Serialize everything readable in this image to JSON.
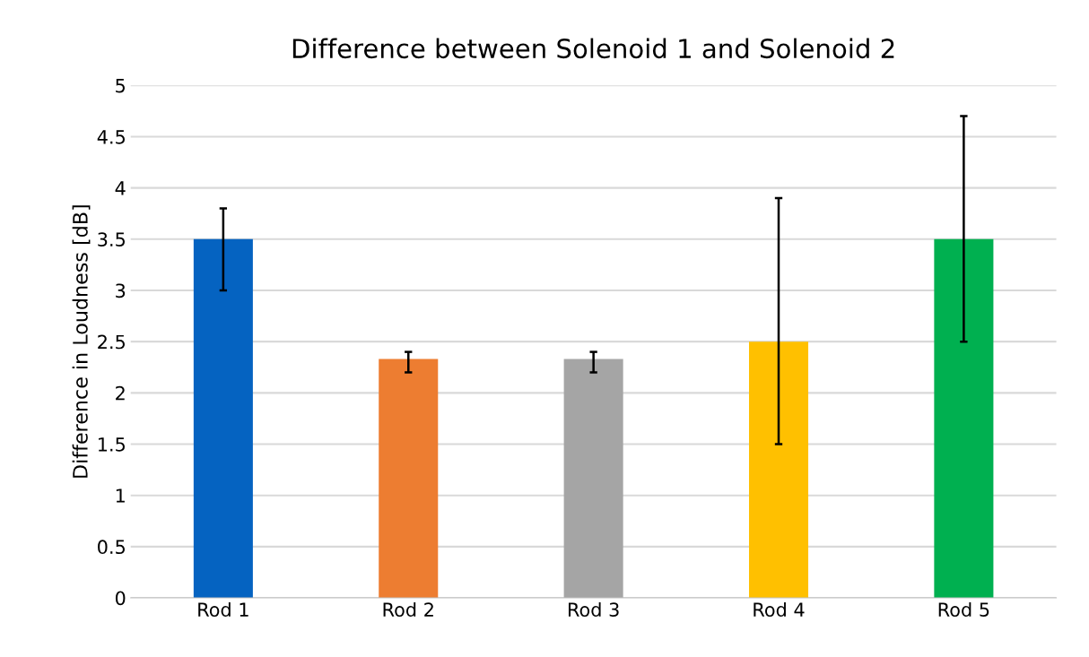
{
  "chart_data": {
    "type": "bar",
    "title": "Difference between Solenoid 1 and Solenoid 2",
    "ylabel": "Difference in Loudness [dB]",
    "categories": [
      "Rod 1",
      "Rod 2",
      "Rod 3",
      "Rod 4",
      "Rod 5"
    ],
    "values": [
      3.5,
      2.33,
      2.33,
      2.5,
      3.5
    ],
    "colors": [
      "#0563c1",
      "#ed7d31",
      "#a5a5a5",
      "#ffc000",
      "#00b050"
    ],
    "errors": [
      [
        3.0,
        3.8
      ],
      [
        2.2,
        2.4
      ],
      [
        2.2,
        2.4
      ],
      [
        1.5,
        3.9
      ],
      [
        2.5,
        4.7
      ]
    ],
    "ylim": [
      0,
      5
    ],
    "yticks": [
      0,
      0.5,
      1,
      1.5,
      2,
      2.5,
      3,
      3.5,
      4,
      4.5,
      5
    ],
    "grid": "y"
  }
}
